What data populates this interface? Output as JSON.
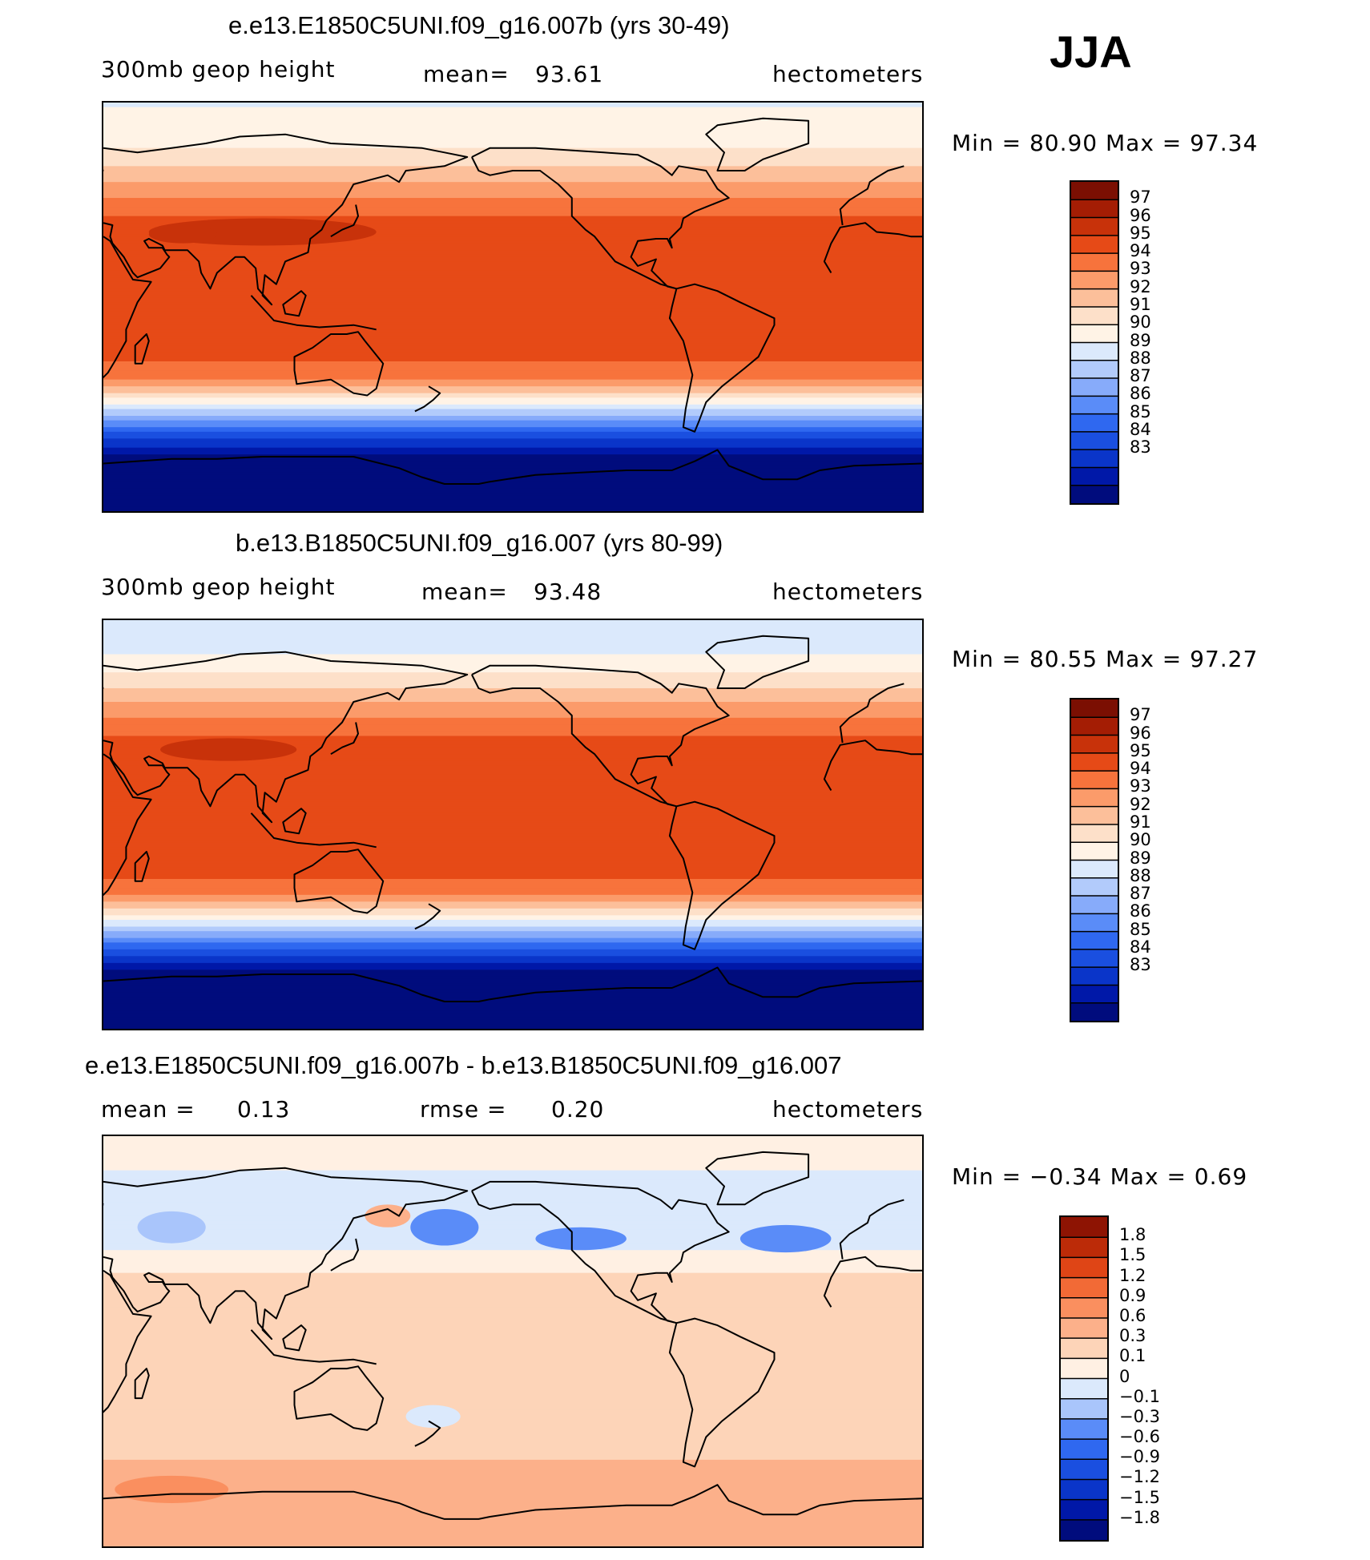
{
  "season": "JJA",
  "panels": [
    {
      "title": "e.e13.E1850C5UNI.f09_g16.007b (yrs 30-49)",
      "variable": "300mb geop height",
      "mean_label": "mean=",
      "mean_value": "93.61",
      "units": "hectometers",
      "range_text": "Min =   80.90 Max =   97.34"
    },
    {
      "title": "b.e13.B1850C5UNI.f09_g16.007 (yrs 80-99)",
      "variable": "300mb geop height",
      "mean_label": "mean=",
      "mean_value": "93.48",
      "units": "hectometers",
      "range_text": "Min =   80.55 Max =   97.27"
    },
    {
      "title": "e.e13.E1850C5UNI.f09_g16.007b - b.e13.B1850C5UNI.f09_g16.007",
      "mean_label": "mean =",
      "mean_value": "0.13",
      "rmse_label": "rmse =",
      "rmse_value": "0.20",
      "units": "hectometers",
      "range_text": "Min =  −0.34 Max =    0.69"
    }
  ],
  "colors": {
    "abs": [
      "#000c7d",
      "#0018a8",
      "#0a35c9",
      "#1a4fe0",
      "#2f68f0",
      "#5a8cf8",
      "#87abfa",
      "#b2cbfb",
      "#dbe9fc",
      "#fff3e6",
      "#fde0c9",
      "#fcbf9a",
      "#fb9b6a",
      "#f7733c",
      "#e64a17",
      "#c8320a",
      "#a41d04",
      "#7b0f02"
    ],
    "diff": [
      "#000c7d",
      "#0018a8",
      "#0a35c9",
      "#1a4fe0",
      "#2f68f0",
      "#5a8cf8",
      "#a9c5fb",
      "#dbe9fc",
      "#fff0e3",
      "#fdd4b8",
      "#fcb08a",
      "#fa8f5f",
      "#f26a36",
      "#df4516",
      "#bc2b08",
      "#8e1403"
    ]
  },
  "chart_data": [
    {
      "type": "heatmap",
      "title": "e.e13.E1850C5UNI.f09_g16.007b (yrs 30-49)",
      "variable": "300mb geop height",
      "units": "hectometers",
      "season": "JJA",
      "mean": 93.61,
      "min": 80.9,
      "max": 97.34,
      "levels": [
        83,
        84,
        85,
        86,
        87,
        88,
        89,
        90,
        91,
        92,
        93,
        94,
        95,
        96,
        97
      ],
      "level_labels": [
        "97",
        "96",
        "95",
        "94",
        "93",
        "92",
        "91",
        "90",
        "89",
        "88",
        "87",
        "86",
        "85",
        "84",
        "83"
      ],
      "xlim": [
        30,
        390
      ],
      "ylim": [
        -90,
        90
      ],
      "zonal_profile": {
        "lat": [
          -90,
          -75,
          -65,
          -60,
          -55,
          -50,
          -45,
          -40,
          -35,
          -30,
          -20,
          0,
          20,
          35,
          45,
          55,
          65,
          75,
          90
        ],
        "value": [
          80.9,
          81.5,
          83.0,
          84.5,
          86.0,
          88.0,
          90.0,
          92.0,
          94.0,
          95.5,
          96.4,
          96.5,
          96.6,
          96.6,
          95.5,
          94.0,
          92.5,
          91.5,
          90.9
        ]
      }
    },
    {
      "type": "heatmap",
      "title": "b.e13.B1850C5UNI.f09_g16.007 (yrs 80-99)",
      "variable": "300mb geop height",
      "units": "hectometers",
      "season": "JJA",
      "mean": 93.48,
      "min": 80.55,
      "max": 97.27,
      "levels": [
        83,
        84,
        85,
        86,
        87,
        88,
        89,
        90,
        91,
        92,
        93,
        94,
        95,
        96,
        97
      ],
      "level_labels": [
        "97",
        "96",
        "95",
        "94",
        "93",
        "92",
        "91",
        "90",
        "89",
        "88",
        "87",
        "86",
        "85",
        "84",
        "83"
      ],
      "xlim": [
        30,
        390
      ],
      "ylim": [
        -90,
        90
      ],
      "zonal_profile": {
        "lat": [
          -90,
          -75,
          -65,
          -60,
          -55,
          -50,
          -45,
          -40,
          -35,
          -30,
          -20,
          0,
          20,
          35,
          45,
          55,
          65,
          75,
          90
        ],
        "value": [
          80.55,
          81.2,
          82.7,
          84.2,
          85.8,
          87.8,
          89.8,
          91.8,
          93.8,
          95.4,
          96.4,
          96.5,
          96.6,
          96.5,
          95.3,
          93.8,
          92.2,
          91.0,
          90.5
        ]
      }
    },
    {
      "type": "heatmap",
      "title": "e.e13.E1850C5UNI.f09_g16.007b - b.e13.B1850C5UNI.f09_g16.007",
      "units": "hectometers",
      "mean": 0.13,
      "rmse": 0.2,
      "min": -0.34,
      "max": 0.69,
      "levels": [
        -1.8,
        -1.5,
        -1.2,
        -0.9,
        -0.6,
        -0.3,
        -0.1,
        0,
        0.1,
        0.3,
        0.6,
        0.9,
        1.2,
        1.5,
        1.8
      ],
      "level_labels": [
        "1.8",
        "1.5",
        "1.2",
        "0.9",
        "0.6",
        "0.3",
        "0.1",
        "0",
        "−0.1",
        "−0.3",
        "−0.6",
        "−0.9",
        "−1.2",
        "−1.5",
        "−1.8"
      ],
      "xlim": [
        30,
        390
      ],
      "ylim": [
        -90,
        90
      ],
      "zonal_profile": {
        "lat": [
          -90,
          -75,
          -60,
          -45,
          -30,
          0,
          30,
          45,
          55,
          65,
          75,
          90
        ],
        "value": [
          0.35,
          0.4,
          0.35,
          0.25,
          0.15,
          0.15,
          0.1,
          -0.05,
          -0.1,
          -0.05,
          0.0,
          0.05
        ]
      }
    }
  ]
}
